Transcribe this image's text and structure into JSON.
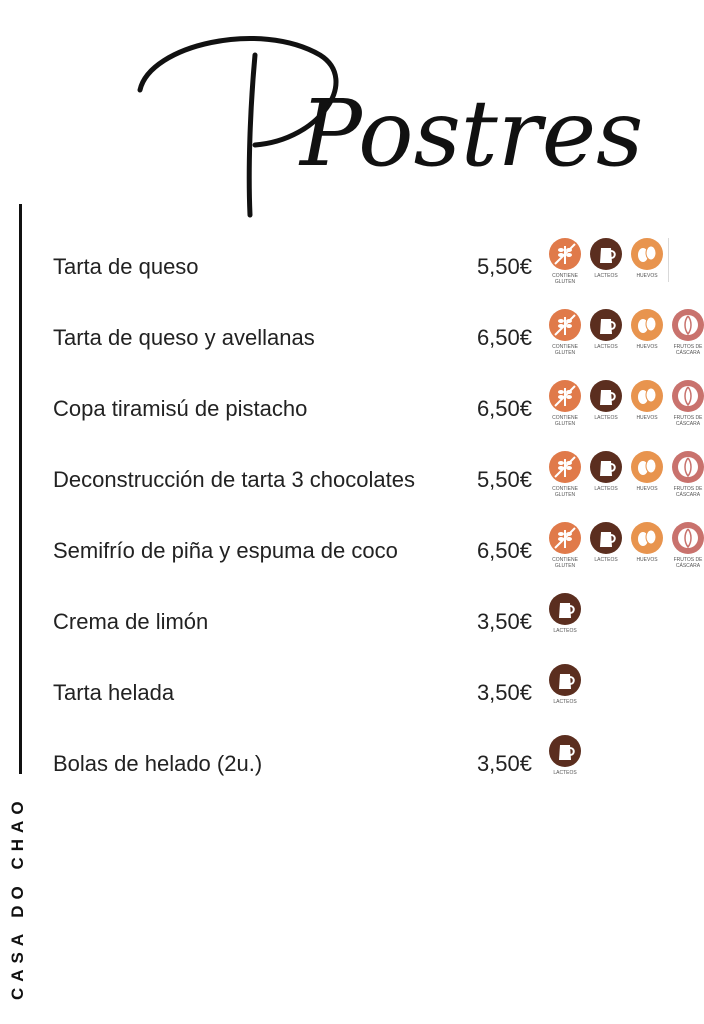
{
  "title": "Postres",
  "brand": "CASA DO CHAO",
  "allergen_labels": {
    "gluten": "CONTIENE GLUTEN",
    "lacteos": "LACTEOS",
    "huevos": "HUEVOS",
    "frutos": "FRUTOS DE CÁSCARA"
  },
  "items": [
    {
      "name": "Tarta de queso",
      "price": "5,50€",
      "allergens": [
        "gluten",
        "lacteos",
        "huevos"
      ]
    },
    {
      "name": "Tarta de queso y avellanas",
      "price": "6,50€",
      "allergens": [
        "gluten",
        "lacteos",
        "huevos",
        "frutos"
      ]
    },
    {
      "name": "Copa tiramisú de pistacho",
      "price": "6,50€",
      "allergens": [
        "gluten",
        "lacteos",
        "huevos",
        "frutos"
      ]
    },
    {
      "name": "Deconstrucción de tarta 3 chocolates",
      "price": "5,50€",
      "allergens": [
        "gluten",
        "lacteos",
        "huevos",
        "frutos"
      ]
    },
    {
      "name": "Semifrío de piña y espuma de coco",
      "price": "6,50€",
      "allergens": [
        "gluten",
        "lacteos",
        "huevos",
        "frutos"
      ]
    },
    {
      "name": "Crema de limón",
      "price": "3,50€",
      "allergens": [
        "lacteos"
      ]
    },
    {
      "name": "Tarta helada",
      "price": "3,50€",
      "allergens": [
        "lacteos"
      ]
    },
    {
      "name": "Bolas de helado (2u.)",
      "price": "3,50€",
      "allergens": [
        "lacteos"
      ]
    }
  ]
}
